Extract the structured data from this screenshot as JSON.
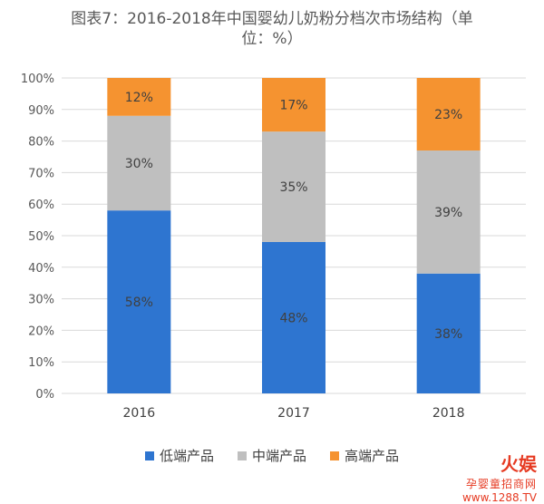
{
  "chart_data": {
    "type": "bar",
    "stacked": true,
    "title_line1": "图表7：2016-2018年中国婴幼儿奶粉分档次市场结构（单",
    "title_line2": "位：%）",
    "categories": [
      "2016",
      "2017",
      "2018"
    ],
    "series": [
      {
        "name": "低端产品",
        "values": [
          58,
          48,
          38
        ],
        "labels": [
          "58%",
          "48%",
          "38%"
        ],
        "color": "#2e75d0"
      },
      {
        "name": "中端产品",
        "values": [
          30,
          35,
          39
        ],
        "labels": [
          "30%",
          "35%",
          "39%"
        ],
        "color": "#bfbfbf"
      },
      {
        "name": "高端产品",
        "values": [
          12,
          17,
          23
        ],
        "labels": [
          "12%",
          "17%",
          "23%"
        ],
        "color": "#f59330"
      }
    ],
    "ylim": [
      0,
      100
    ],
    "yticks": [
      "0%",
      "10%",
      "20%",
      "30%",
      "40%",
      "50%",
      "60%",
      "70%",
      "80%",
      "90%",
      "100%"
    ],
    "grid": true,
    "legend_position": "bottom"
  },
  "watermark": {
    "brand": "火娱",
    "name": "孕婴童招商网",
    "url": "www.1288.TV"
  }
}
